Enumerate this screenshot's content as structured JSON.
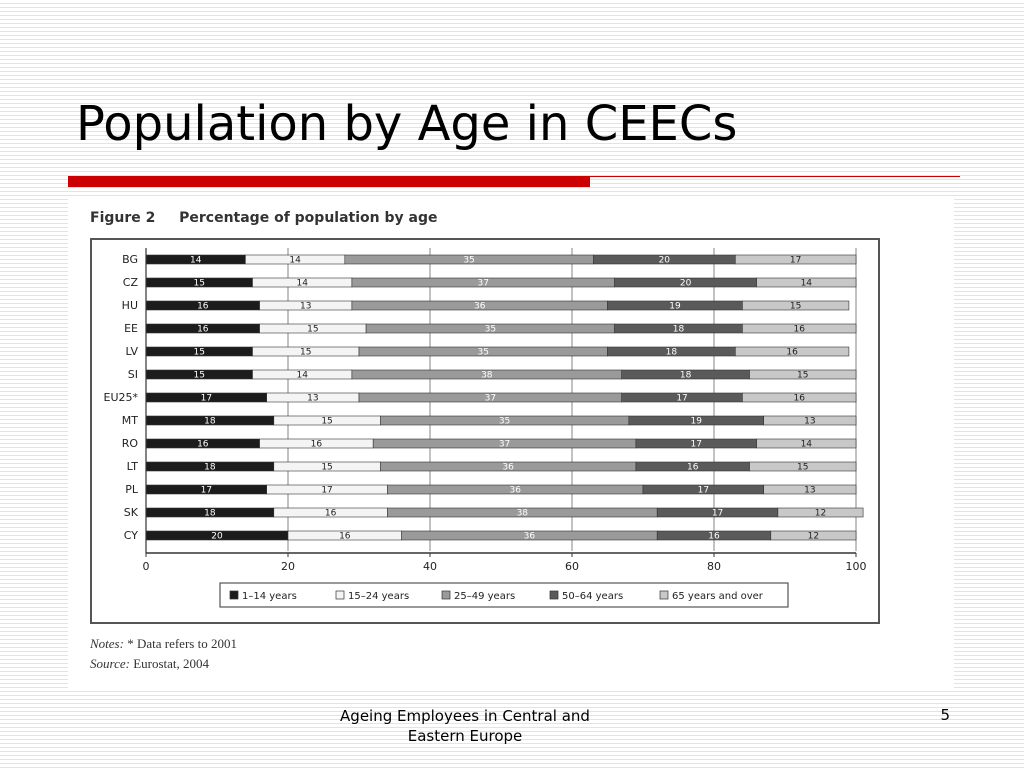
{
  "slide": {
    "title": "Population by Age in CEECs",
    "footer": "Ageing Employees in Central and Eastern Europe",
    "page_number": "5"
  },
  "figure": {
    "caption_number": "Figure 2",
    "caption_title": "Percentage of population by age",
    "notes_label": "Notes:",
    "notes_text": "* Data refers to 2001",
    "source_label": "Source:",
    "source_text": "Eurostat, 2004"
  },
  "colors": {
    "title_rule": "#cc0000",
    "series": [
      "#1c1c1c",
      "#f4f4f4",
      "#9a9a9a",
      "#5a5a5a",
      "#c8c8c8"
    ]
  },
  "chart_data": {
    "type": "bar",
    "orientation": "horizontal",
    "stacked": true,
    "categories": [
      "BG",
      "CZ",
      "HU",
      "EE",
      "LV",
      "SI",
      "EU25*",
      "MT",
      "RO",
      "LT",
      "PL",
      "SK",
      "CY"
    ],
    "series": [
      {
        "name": "1–14 years",
        "values": [
          14,
          15,
          16,
          16,
          15,
          15,
          17,
          18,
          16,
          18,
          17,
          18,
          20
        ]
      },
      {
        "name": "15–24 years",
        "values": [
          14,
          14,
          13,
          15,
          15,
          14,
          13,
          15,
          16,
          15,
          17,
          16,
          16
        ]
      },
      {
        "name": "25–49 years",
        "values": [
          35,
          37,
          36,
          35,
          35,
          38,
          37,
          35,
          37,
          36,
          36,
          38,
          36
        ]
      },
      {
        "name": "50–64 years",
        "values": [
          20,
          20,
          19,
          18,
          18,
          18,
          17,
          19,
          17,
          16,
          17,
          17,
          16
        ]
      },
      {
        "name": "65 years and over",
        "values": [
          17,
          14,
          15,
          16,
          16,
          15,
          16,
          13,
          14,
          15,
          13,
          12,
          12
        ]
      }
    ],
    "xlim": [
      0,
      100
    ],
    "xticks": [
      0,
      20,
      40,
      60,
      80,
      100
    ],
    "grid": true,
    "legend_position": "bottom"
  }
}
